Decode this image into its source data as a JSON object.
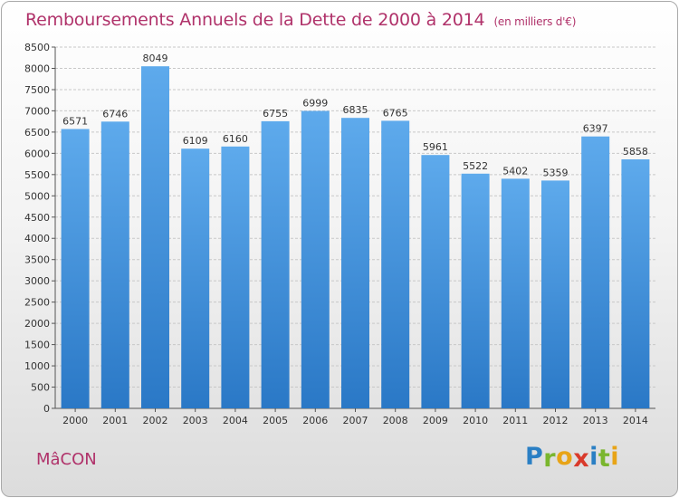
{
  "header": {
    "title": "Remboursements Annuels de la Dette de 2000 à 2014",
    "unit": "(en milliers d'€)"
  },
  "footer": {
    "city": "MâCON",
    "brand_letters": [
      "P",
      "r",
      "o",
      "x",
      "i",
      "t",
      "i"
    ],
    "brand_colors": [
      "#2a7fc4",
      "#7ab62e",
      "#e8a417",
      "#d93a2b",
      "#2a7fc4",
      "#7ab62e",
      "#e8a417"
    ]
  },
  "colors": {
    "title": "#b0326a",
    "bar_top": "#5eaaec",
    "bar_bottom": "#2a78c6",
    "grid": "#c8c8c8"
  },
  "chart_data": {
    "type": "bar",
    "title": "Remboursements Annuels de la Dette de 2000 à 2014",
    "categories": [
      "2000",
      "2001",
      "2002",
      "2003",
      "2004",
      "2005",
      "2006",
      "2007",
      "2008",
      "2009",
      "2010",
      "2011",
      "2012",
      "2013",
      "2014"
    ],
    "values": [
      6571,
      6746,
      8049,
      6109,
      6160,
      6755,
      6999,
      6835,
      6765,
      5961,
      5522,
      5402,
      5359,
      6397,
      5858
    ],
    "ylim": [
      0,
      8500
    ],
    "ytick_step": 500,
    "grid": true,
    "legend": "none"
  }
}
